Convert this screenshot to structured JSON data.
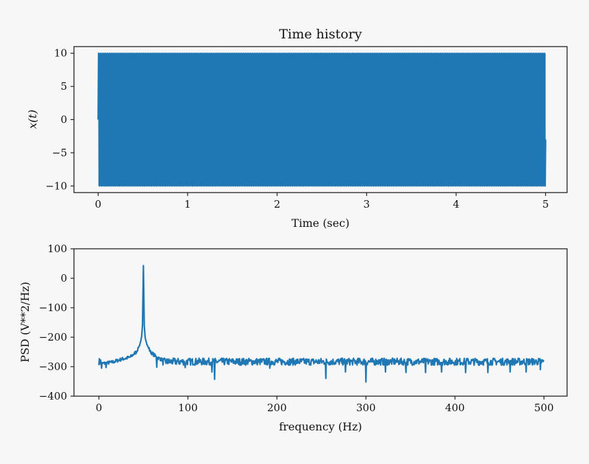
{
  "chart_data": [
    {
      "type": "line",
      "title": "Time history",
      "xlabel": "Time (sec)",
      "ylabel": "x(t)",
      "xlim": [
        -0.27,
        5.24
      ],
      "ylim": [
        -11,
        11
      ],
      "xticks": [
        0,
        1,
        2,
        3,
        4,
        5
      ],
      "yticks": [
        -10,
        -5,
        0,
        5,
        10
      ],
      "xtick_labels": [
        "0",
        "1",
        "2",
        "3",
        "4",
        "5"
      ],
      "ytick_labels": [
        "−10",
        "−5",
        "0",
        "5",
        "10"
      ],
      "series": [
        {
          "color": "#1f77b4",
          "signal": "sinusoid",
          "amplitude": 10,
          "frequency_hz": 50,
          "x_start": 0,
          "x_end": 5
        }
      ]
    },
    {
      "type": "line",
      "title": "",
      "xlabel": "frequency (Hz)",
      "ylabel": "PSD (V**2/Hz)",
      "xlim": [
        -28,
        526
      ],
      "ylim": [
        -400,
        100
      ],
      "xticks": [
        0,
        100,
        200,
        300,
        400,
        500
      ],
      "yticks": [
        -400,
        -300,
        -200,
        -100,
        0,
        100
      ],
      "xtick_labels": [
        "0",
        "100",
        "200",
        "300",
        "400",
        "500"
      ],
      "ytick_labels": [
        "−400",
        "−300",
        "−200",
        "−100",
        "0",
        "100"
      ],
      "series": [
        {
          "color": "#1f77b4",
          "x_start": 0,
          "x_end": 500,
          "baseline": -283,
          "noise_amplitude": 12,
          "peak_frequency": 50,
          "peak_value": 43,
          "shoulder_points": [
            [
              2,
              -290
            ],
            [
              15,
              -285
            ],
            [
              25,
              -275
            ],
            [
              35,
              -268
            ],
            [
              42,
              -250
            ],
            [
              46,
              -225
            ],
            [
              48,
              -200
            ],
            [
              49,
              -160
            ],
            [
              50,
              43
            ],
            [
              51,
              -160
            ],
            [
              52,
              -200
            ],
            [
              54,
              -225
            ],
            [
              58,
              -250
            ],
            [
              65,
              -268
            ],
            [
              72,
              -278
            ]
          ],
          "dips": [
            [
              3,
              -305
            ],
            [
              8,
              -303
            ],
            [
              65,
              -302
            ],
            [
              97,
              -303
            ],
            [
              127,
              -318
            ],
            [
              130,
              -343
            ],
            [
              192,
              -305
            ],
            [
              255,
              -340
            ],
            [
              277,
              -318
            ],
            [
              300,
              -352
            ],
            [
              322,
              -318
            ],
            [
              345,
              -320
            ],
            [
              367,
              -320
            ],
            [
              385,
              -318
            ],
            [
              412,
              -320
            ],
            [
              437,
              -320
            ],
            [
              462,
              -318
            ],
            [
              480,
              -318
            ],
            [
              496,
              -310
            ]
          ]
        }
      ]
    }
  ]
}
